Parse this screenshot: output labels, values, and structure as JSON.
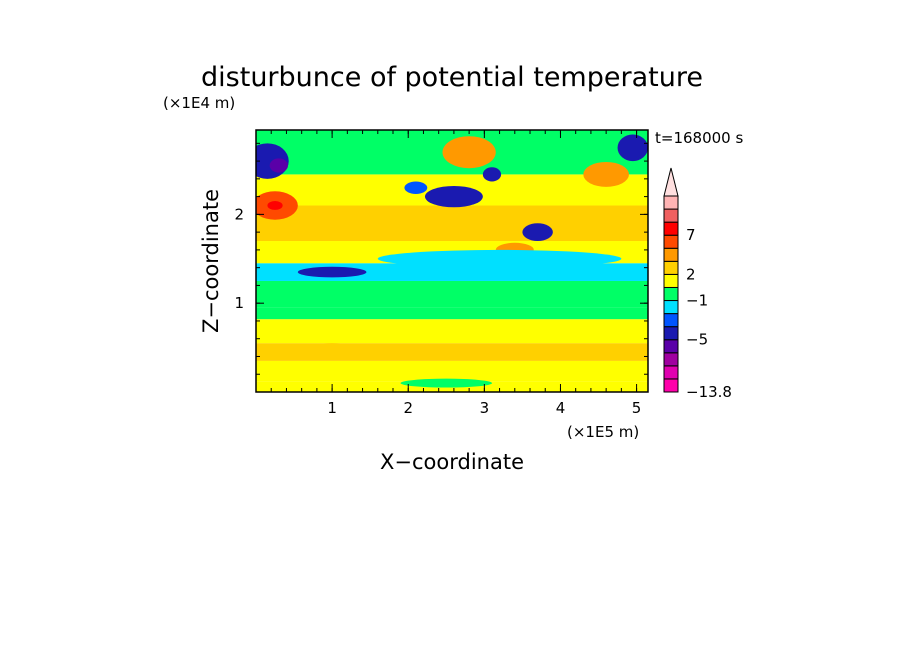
{
  "chart_data": {
    "type": "heatmap",
    "title": "disturbunce of potential temperature",
    "xlabel": "X−coordinate",
    "ylabel": "Z−coordinate",
    "x_unit": "(×1E5 m)",
    "y_unit": "(×1E4 m)",
    "time_label": "t=168000 s",
    "xlim": [
      0,
      5.15
    ],
    "ylim": [
      0,
      2.95
    ],
    "x_ticks": [
      {
        "value": 1,
        "label": "1"
      },
      {
        "value": 2,
        "label": "2"
      },
      {
        "value": 3,
        "label": "3"
      },
      {
        "value": 4,
        "label": "4"
      },
      {
        "value": 5,
        "label": "5"
      }
    ],
    "y_ticks": [
      {
        "value": 1,
        "label": "1"
      },
      {
        "value": 2,
        "label": "2"
      }
    ],
    "colorbar": {
      "levels": [
        {
          "color": "#ff00aa"
        },
        {
          "color": "#e000b0"
        },
        {
          "color": "#a000a0"
        },
        {
          "color": "#5a00a8"
        },
        {
          "color": "#1a1ab0"
        },
        {
          "color": "#0055ff"
        },
        {
          "color": "#00e0ff"
        },
        {
          "color": "#00ff66"
        },
        {
          "color": "#ffff00"
        },
        {
          "color": "#ffd000"
        },
        {
          "color": "#ff9900"
        },
        {
          "color": "#ff4a00"
        },
        {
          "color": "#ff0000"
        },
        {
          "color": "#f06060"
        },
        {
          "color": "#ffb4b4"
        }
      ],
      "labels": [
        {
          "text": "7",
          "after_level": 12
        },
        {
          "text": "2",
          "after_level": 9
        },
        {
          "text": "−1",
          "after_level": 7
        },
        {
          "text": "−5",
          "after_level": 4
        },
        {
          "text": "−13.8",
          "after_level": 0
        }
      ],
      "extend": "max",
      "extend_color": "#ffe0e0"
    },
    "bands": [
      {
        "z": [
          0.0,
          0.12
        ],
        "level": 8
      },
      {
        "z": [
          0.12,
          0.35
        ],
        "level": 8
      },
      {
        "z": [
          0.35,
          0.55
        ],
        "level": 9
      },
      {
        "z": [
          0.55,
          0.82
        ],
        "level": 8
      },
      {
        "z": [
          0.82,
          0.95
        ],
        "level": 7
      },
      {
        "z": [
          0.95,
          1.25
        ],
        "level": 7
      },
      {
        "z": [
          1.25,
          1.45
        ],
        "level": 6
      },
      {
        "z": [
          1.45,
          1.7
        ],
        "level": 8
      },
      {
        "z": [
          1.7,
          2.1
        ],
        "level": 9
      },
      {
        "z": [
          2.1,
          2.45
        ],
        "level": 8
      },
      {
        "z": [
          2.45,
          2.95
        ],
        "level": 7
      }
    ],
    "features": [
      {
        "x": 0.15,
        "z": 2.6,
        "rx": 0.28,
        "rz": 0.2,
        "level": 4
      },
      {
        "x": 0.3,
        "z": 2.55,
        "rx": 0.12,
        "rz": 0.08,
        "level": 3
      },
      {
        "x": 0.25,
        "z": 2.1,
        "rx": 0.3,
        "rz": 0.16,
        "level": 11
      },
      {
        "x": 0.25,
        "z": 2.1,
        "rx": 0.1,
        "rz": 0.05,
        "level": 12
      },
      {
        "x": 4.95,
        "z": 2.75,
        "rx": 0.2,
        "rz": 0.15,
        "level": 4
      },
      {
        "x": 4.6,
        "z": 2.45,
        "rx": 0.3,
        "rz": 0.14,
        "level": 10
      },
      {
        "x": 2.8,
        "z": 2.7,
        "rx": 0.35,
        "rz": 0.18,
        "level": 10
      },
      {
        "x": 2.6,
        "z": 2.2,
        "rx": 0.38,
        "rz": 0.12,
        "level": 4
      },
      {
        "x": 2.1,
        "z": 2.3,
        "rx": 0.15,
        "rz": 0.07,
        "level": 5
      },
      {
        "x": 3.1,
        "z": 2.45,
        "rx": 0.12,
        "rz": 0.08,
        "level": 4
      },
      {
        "x": 3.7,
        "z": 1.8,
        "rx": 0.2,
        "rz": 0.1,
        "level": 4
      },
      {
        "x": 3.4,
        "z": 1.6,
        "rx": 0.25,
        "rz": 0.08,
        "level": 10
      },
      {
        "x": 1.0,
        "z": 1.35,
        "rx": 0.45,
        "rz": 0.06,
        "level": 4
      },
      {
        "x": 3.2,
        "z": 1.5,
        "rx": 1.6,
        "rz": 0.1,
        "level": 6
      },
      {
        "x": 1.0,
        "z": 0.5,
        "rx": 0.3,
        "rz": 0.05,
        "level": 9
      },
      {
        "x": 3.8,
        "z": 0.45,
        "rx": 0.25,
        "rz": 0.05,
        "level": 9
      },
      {
        "x": 2.5,
        "z": 0.1,
        "rx": 0.6,
        "rz": 0.05,
        "level": 7
      }
    ]
  }
}
